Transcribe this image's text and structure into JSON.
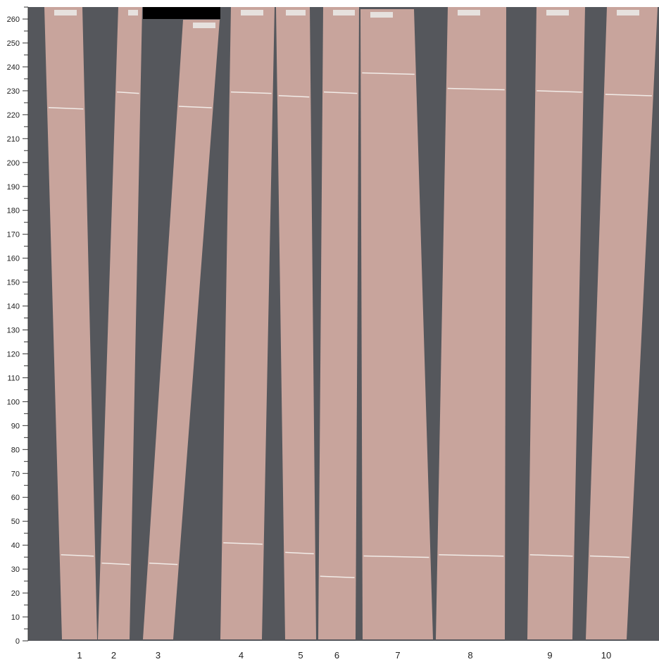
{
  "y_axis": {
    "min": 0,
    "max": 265,
    "major_step": 10,
    "minor_step": 5,
    "ticks": [
      "0",
      "10",
      "20",
      "30",
      "40",
      "50",
      "60",
      "70",
      "80",
      "90",
      "100",
      "110",
      "120",
      "130",
      "140",
      "150",
      "160",
      "170",
      "180",
      "190",
      "200",
      "210",
      "220",
      "230",
      "240",
      "250",
      "260"
    ]
  },
  "x_axis": {
    "labels": [
      "1",
      "2",
      "3",
      "4",
      "5",
      "6",
      "7",
      "8",
      "9",
      "10"
    ]
  },
  "colors": {
    "background": "#55575c",
    "wood": "#c8a49c",
    "mark_line": "#f2ece8",
    "redaction": "#000000"
  }
}
